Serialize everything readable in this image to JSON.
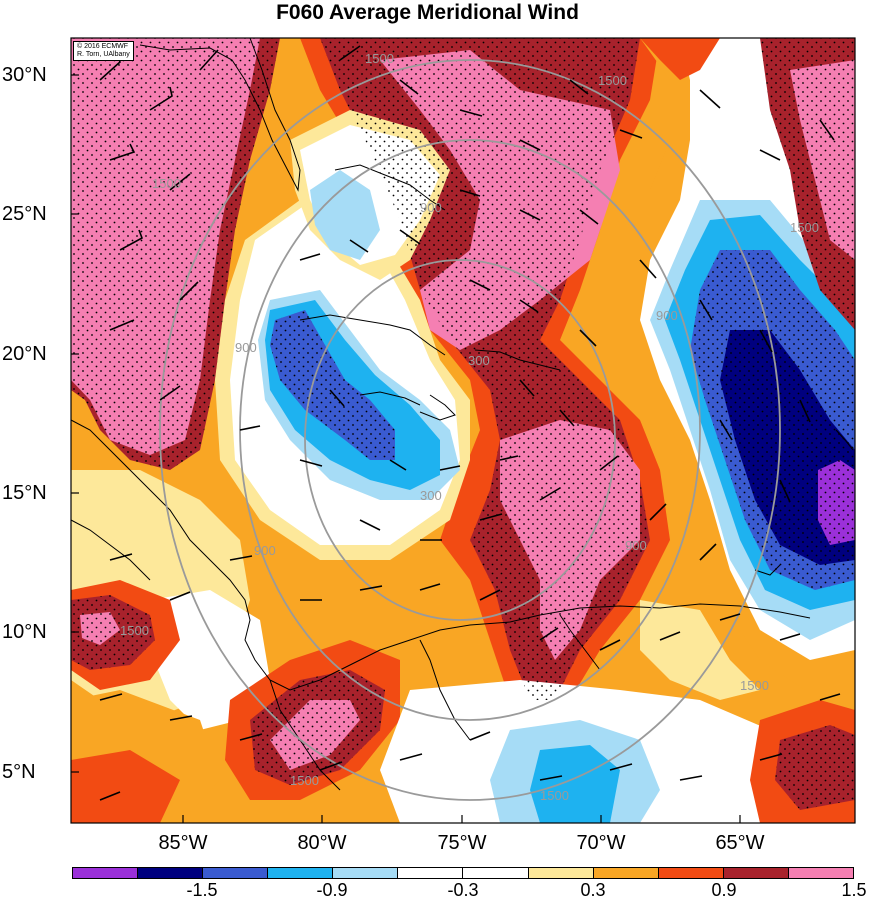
{
  "title": "F060 Average Meridional Wind",
  "credit": [
    "© 2016 ECMWF",
    "R. Torn, UAlbany"
  ],
  "lat_labels": [
    "30°N",
    "25°N",
    "20°N",
    "15°N",
    "10°N",
    "5°N"
  ],
  "lon_labels": [
    "85°W",
    "80°W",
    "75°W",
    "70°W",
    "65°W"
  ],
  "contour_labels": [
    "1500",
    "1500",
    "1500",
    "1500",
    "900",
    "900",
    "900",
    "900",
    "900",
    "300",
    "300",
    "1500",
    "1500",
    "1500",
    "1500"
  ],
  "colorbar": {
    "colors": [
      "#9b30d9",
      "#00007f",
      "#3a5bd1",
      "#1eb2f0",
      "#a6dcf6",
      "#ffffff",
      "#ffffff",
      "#fde89a",
      "#f9a624",
      "#f24b13",
      "#a8222c",
      "#f57fb2"
    ],
    "labels": [
      "-1.5",
      "-0.9",
      "-0.3",
      "0.3",
      "0.9",
      "1.5"
    ]
  },
  "palette": {
    "pink": "#f57fb2",
    "darkred": "#a8222c",
    "red": "#f24b13",
    "orange": "#f9a624",
    "yellow": "#fde89a",
    "white": "#ffffff",
    "lightblue": "#a6dcf6",
    "cyan": "#1eb2f0",
    "blue": "#3a5bd1",
    "navy": "#00007f",
    "purple": "#9b30d9"
  }
}
